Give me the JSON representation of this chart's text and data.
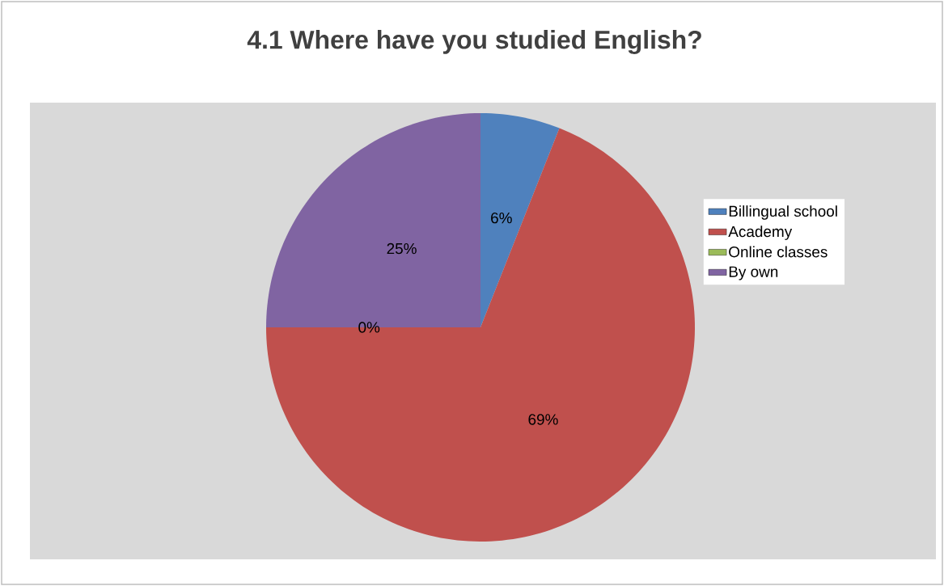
{
  "chart_data": {
    "type": "pie",
    "title": "4.1 Where have you studied English?",
    "categories": [
      "Billingual school",
      "Academy",
      "Online classes",
      "By own"
    ],
    "values": [
      6,
      69,
      0,
      25
    ],
    "colors": [
      "#4f81bd",
      "#c0504d",
      "#9bbb59",
      "#8064a2"
    ],
    "value_labels": [
      "6%",
      "69%",
      "0%",
      "25%"
    ],
    "legend": "right"
  }
}
